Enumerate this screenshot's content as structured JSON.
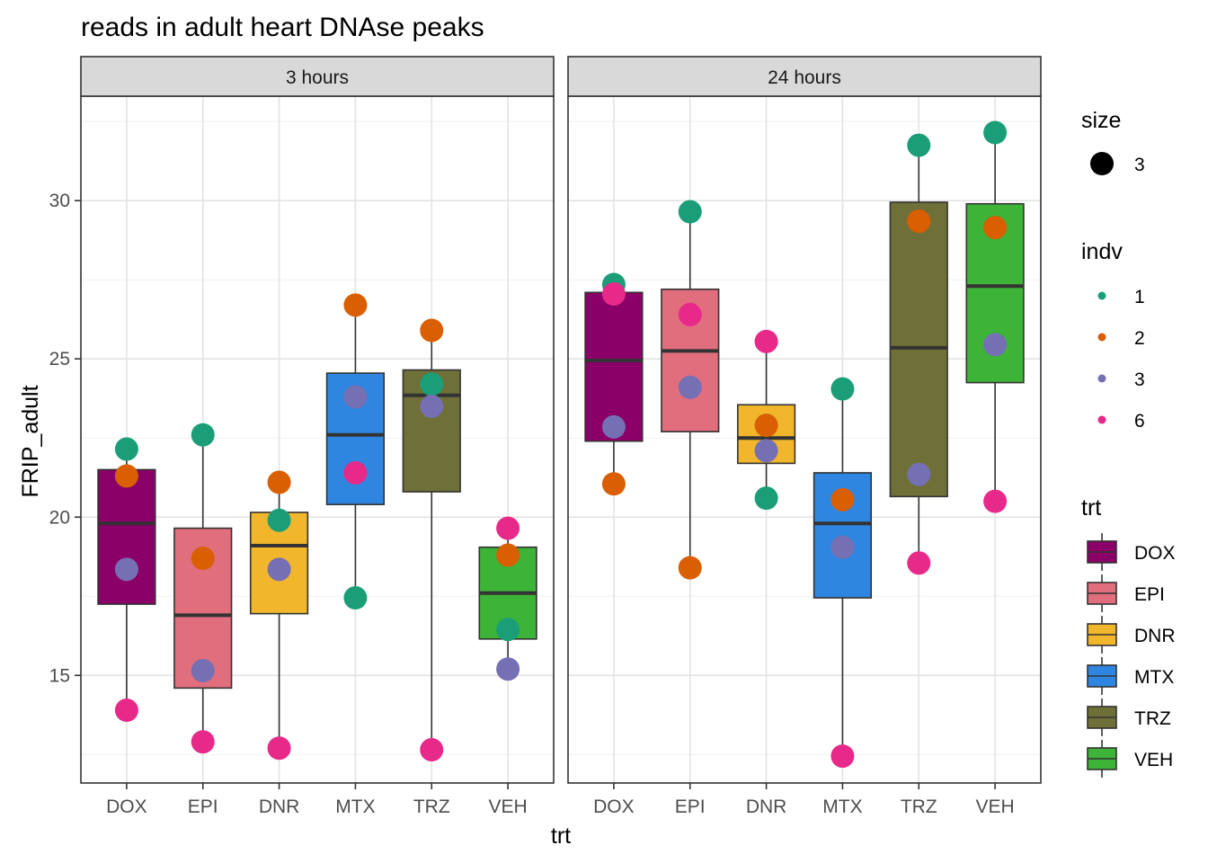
{
  "chart_data": {
    "type": "box",
    "title": "reads in adult heart DNAse peaks",
    "xlabel": "trt",
    "ylabel": "FRIP_adult",
    "ylim": [
      11.6,
      33.3
    ],
    "yticks": [
      15,
      20,
      25,
      30
    ],
    "grid": true,
    "legend_position": "right",
    "categories": [
      "DOX",
      "EPI",
      "DNR",
      "MTX",
      "TRZ",
      "VEH"
    ],
    "trt_colors": {
      "DOX": "#8B0068",
      "EPI": "#E06E7D",
      "DNR": "#F1B62C",
      "MTX": "#2F86E0",
      "TRZ": "#6E7037",
      "VEH": "#3DB338"
    },
    "indv_colors": {
      "1": "#1B9E77",
      "2": "#D95F02",
      "3": "#7570B3",
      "6": "#E7298A"
    },
    "legends": {
      "size": {
        "title": "size",
        "label": "3"
      },
      "indv": {
        "title": "indv",
        "labels": [
          "1",
          "2",
          "3",
          "6"
        ]
      },
      "trt": {
        "title": "trt",
        "labels": [
          "DOX",
          "EPI",
          "DNR",
          "MTX",
          "TRZ",
          "VEH"
        ]
      }
    },
    "facets": [
      {
        "label": "3 hours",
        "boxes": [
          {
            "trt": "DOX",
            "q1": 17.25,
            "median": 19.8,
            "q3": 21.5,
            "lower": 13.9,
            "upper": 22.15
          },
          {
            "trt": "EPI",
            "q1": 14.6,
            "median": 16.9,
            "q3": 19.65,
            "lower": 12.9,
            "upper": 22.6
          },
          {
            "trt": "DNR",
            "q1": 16.95,
            "median": 19.1,
            "q3": 20.15,
            "lower": 12.7,
            "upper": 21.1
          },
          {
            "trt": "MTX",
            "q1": 20.4,
            "median": 22.6,
            "q3": 24.55,
            "lower": 17.45,
            "upper": 26.7
          },
          {
            "trt": "TRZ",
            "q1": 20.8,
            "median": 23.85,
            "q3": 24.65,
            "lower": 12.65,
            "upper": 25.9
          },
          {
            "trt": "VEH",
            "q1": 16.15,
            "median": 17.6,
            "q3": 19.05,
            "lower": 15.2,
            "upper": 19.65
          }
        ],
        "points": [
          {
            "trt": "DOX",
            "indv": "1",
            "value": 22.15
          },
          {
            "trt": "DOX",
            "indv": "2",
            "value": 21.3
          },
          {
            "trt": "DOX",
            "indv": "3",
            "value": 18.35
          },
          {
            "trt": "DOX",
            "indv": "6",
            "value": 13.9
          },
          {
            "trt": "EPI",
            "indv": "1",
            "value": 22.6
          },
          {
            "trt": "EPI",
            "indv": "2",
            "value": 18.7
          },
          {
            "trt": "EPI",
            "indv": "3",
            "value": 15.15
          },
          {
            "trt": "EPI",
            "indv": "6",
            "value": 12.9
          },
          {
            "trt": "DNR",
            "indv": "1",
            "value": 19.9
          },
          {
            "trt": "DNR",
            "indv": "2",
            "value": 21.1
          },
          {
            "trt": "DNR",
            "indv": "3",
            "value": 18.35
          },
          {
            "trt": "DNR",
            "indv": "6",
            "value": 12.7
          },
          {
            "trt": "MTX",
            "indv": "1",
            "value": 17.45
          },
          {
            "trt": "MTX",
            "indv": "2",
            "value": 26.7
          },
          {
            "trt": "MTX",
            "indv": "3",
            "value": 23.8
          },
          {
            "trt": "MTX",
            "indv": "6",
            "value": 21.4
          },
          {
            "trt": "TRZ",
            "indv": "1",
            "value": 24.2
          },
          {
            "trt": "TRZ",
            "indv": "2",
            "value": 25.9
          },
          {
            "trt": "TRZ",
            "indv": "3",
            "value": 23.5
          },
          {
            "trt": "TRZ",
            "indv": "6",
            "value": 12.65
          },
          {
            "trt": "VEH",
            "indv": "1",
            "value": 16.45
          },
          {
            "trt": "VEH",
            "indv": "2",
            "value": 18.8
          },
          {
            "trt": "VEH",
            "indv": "3",
            "value": 15.2
          },
          {
            "trt": "VEH",
            "indv": "6",
            "value": 19.65
          }
        ]
      },
      {
        "label": "24 hours",
        "boxes": [
          {
            "trt": "DOX",
            "q1": 22.4,
            "median": 24.95,
            "q3": 27.1,
            "lower": 21.05,
            "upper": 27.35
          },
          {
            "trt": "EPI",
            "q1": 22.7,
            "median": 25.25,
            "q3": 27.2,
            "lower": 18.4,
            "upper": 29.65
          },
          {
            "trt": "DNR",
            "q1": 21.7,
            "median": 22.5,
            "q3": 23.55,
            "lower": 20.6,
            "upper": 25.55
          },
          {
            "trt": "MTX",
            "q1": 17.45,
            "median": 19.8,
            "q3": 21.4,
            "lower": 12.45,
            "upper": 24.05
          },
          {
            "trt": "TRZ",
            "q1": 20.65,
            "median": 25.35,
            "q3": 29.95,
            "lower": 18.55,
            "upper": 31.75
          },
          {
            "trt": "VEH",
            "q1": 24.25,
            "median": 27.3,
            "q3": 29.9,
            "lower": 20.5,
            "upper": 32.15
          }
        ],
        "points": [
          {
            "trt": "DOX",
            "indv": "1",
            "value": 27.35
          },
          {
            "trt": "DOX",
            "indv": "2",
            "value": 21.05
          },
          {
            "trt": "DOX",
            "indv": "3",
            "value": 22.85
          },
          {
            "trt": "DOX",
            "indv": "6",
            "value": 27.05
          },
          {
            "trt": "EPI",
            "indv": "1",
            "value": 29.65
          },
          {
            "trt": "EPI",
            "indv": "2",
            "value": 18.4
          },
          {
            "trt": "EPI",
            "indv": "3",
            "value": 24.1
          },
          {
            "trt": "EPI",
            "indv": "6",
            "value": 26.4
          },
          {
            "trt": "DNR",
            "indv": "1",
            "value": 20.6
          },
          {
            "trt": "DNR",
            "indv": "2",
            "value": 22.9
          },
          {
            "trt": "DNR",
            "indv": "3",
            "value": 22.1
          },
          {
            "trt": "DNR",
            "indv": "6",
            "value": 25.55
          },
          {
            "trt": "MTX",
            "indv": "1",
            "value": 24.05
          },
          {
            "trt": "MTX",
            "indv": "2",
            "value": 20.55
          },
          {
            "trt": "MTX",
            "indv": "3",
            "value": 19.05
          },
          {
            "trt": "MTX",
            "indv": "6",
            "value": 12.45
          },
          {
            "trt": "TRZ",
            "indv": "1",
            "value": 31.75
          },
          {
            "trt": "TRZ",
            "indv": "2",
            "value": 29.35
          },
          {
            "trt": "TRZ",
            "indv": "3",
            "value": 21.35
          },
          {
            "trt": "TRZ",
            "indv": "6",
            "value": 18.55
          },
          {
            "trt": "VEH",
            "indv": "1",
            "value": 32.15
          },
          {
            "trt": "VEH",
            "indv": "2",
            "value": 29.15
          },
          {
            "trt": "VEH",
            "indv": "3",
            "value": 25.45
          },
          {
            "trt": "VEH",
            "indv": "6",
            "value": 20.5
          }
        ]
      }
    ]
  }
}
